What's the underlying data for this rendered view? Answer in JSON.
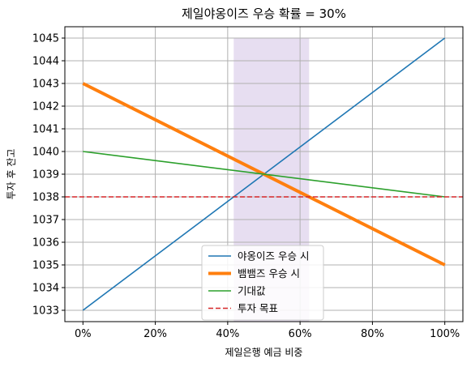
{
  "chart_data": {
    "type": "line",
    "title": "제일야옹이즈 우승 확률 = 30%",
    "xlabel": "제일은행 예금 비중",
    "ylabel": "투자 후 잔고",
    "xlim": [
      -0.05,
      1.05
    ],
    "ylim": [
      1032.5,
      1045.5
    ],
    "x_ticks": [
      0,
      0.2,
      0.4,
      0.6,
      0.8,
      1.0
    ],
    "x_tick_labels": [
      "0%",
      "20%",
      "40%",
      "60%",
      "80%",
      "100%"
    ],
    "y_ticks": [
      1033,
      1034,
      1035,
      1036,
      1037,
      1038,
      1039,
      1040,
      1041,
      1042,
      1043,
      1044,
      1045
    ],
    "y_tick_labels": [
      "1033",
      "1034",
      "1035",
      "1036",
      "1037",
      "1038",
      "1039",
      "1040",
      "1041",
      "1042",
      "1043",
      "1044",
      "1045"
    ],
    "grid": true,
    "legend_position": "lower center",
    "shaded_region": {
      "x": [
        0.4167,
        0.625
      ],
      "y": [
        1032.5,
        1045
      ],
      "color": "#e6dcf0"
    },
    "series": [
      {
        "name": "야옹이즈 우승 시",
        "x": [
          0,
          1
        ],
        "y": [
          1033,
          1045
        ],
        "color": "#1f77b4",
        "style": "solid",
        "width": "normal"
      },
      {
        "name": "뱀뱀즈 우승 시",
        "x": [
          0,
          1
        ],
        "y": [
          1043,
          1035
        ],
        "color": "#ff7f0e",
        "style": "solid",
        "width": "thick"
      },
      {
        "name": "기대값",
        "x": [
          0,
          1
        ],
        "y": [
          1040,
          1038
        ],
        "color": "#2ca02c",
        "style": "solid",
        "width": "normal"
      },
      {
        "name": "투자 목표",
        "x": [
          -0.05,
          1.05
        ],
        "y": [
          1038,
          1038
        ],
        "color": "#d62728",
        "style": "dashed",
        "width": "normal"
      }
    ]
  }
}
